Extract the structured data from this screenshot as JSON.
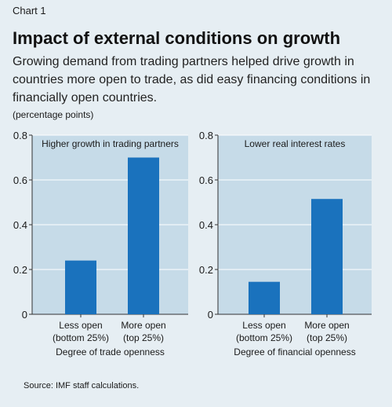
{
  "header": {
    "chart_label": "Chart 1",
    "title": "Impact of external conditions on growth",
    "subtitle": "Growing demand from trading partners helped drive growth in countries more open to trade, as did easy financing conditions in financially open countries.",
    "unit": "(percentage points)"
  },
  "footer": {
    "source": "Source: IMF staff calculations."
  },
  "colors": {
    "bar": "#1a72bd",
    "panel": "#c6dbe8",
    "background": "#e6eef3"
  },
  "chart_data": [
    {
      "type": "bar",
      "title": "Higher growth in trading partners",
      "categories": [
        "Less open (bottom 25%)",
        "More open (top 25%)"
      ],
      "category_lines": [
        [
          "Less open",
          "(bottom 25%)"
        ],
        [
          "More open",
          "(top 25%)"
        ]
      ],
      "values": [
        0.24,
        0.7
      ],
      "xlabel": "Degree of trade openness",
      "ylabel": "(percentage points)",
      "ylim": [
        0,
        0.8
      ],
      "yticks": [
        "0",
        "0.2",
        "0.4",
        "0.6",
        "0.8"
      ],
      "grid": true
    },
    {
      "type": "bar",
      "title": "Lower real interest rates",
      "categories": [
        "Less open (bottom 25%)",
        "More open (top 25%)"
      ],
      "category_lines": [
        [
          "Less open",
          "(bottom 25%)"
        ],
        [
          "More open",
          "(top 25%)"
        ]
      ],
      "values": [
        0.145,
        0.515
      ],
      "xlabel": "Degree of financial openness",
      "ylabel": "(percentage points)",
      "ylim": [
        0,
        0.8
      ],
      "yticks": [
        "0",
        "0.2",
        "0.4",
        "0.6",
        "0.8"
      ],
      "grid": true
    }
  ]
}
